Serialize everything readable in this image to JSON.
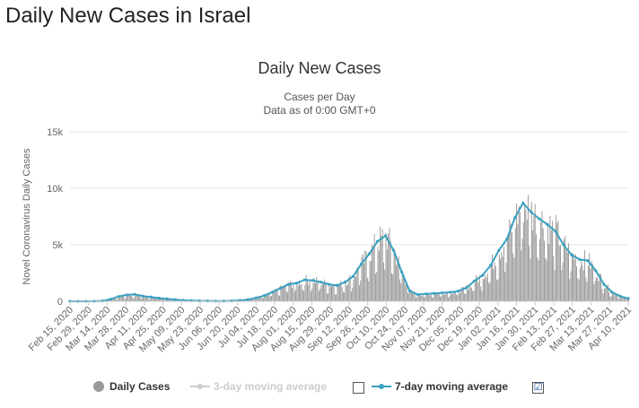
{
  "page_title": "Daily New Cases in Israel",
  "legend": {
    "daily_cases": "Daily Cases",
    "three_day": "3-day moving average",
    "seven_day": "7-day moving average",
    "seven_day_checked": "☑"
  },
  "colors": {
    "bars": "#999999",
    "seven_day_line": "#3aa0c0",
    "three_day_disabled": "#cccccc",
    "grid": "#e6e6e6"
  },
  "chart_data": {
    "type": "bar",
    "title": "Daily New Cases",
    "subtitle": [
      "Cases per Day",
      "Data as of 0:00 GMT+0"
    ],
    "ylabel": "Novel Coronavirus Daily Cases",
    "ylim": [
      0,
      15000
    ],
    "yticks": [
      0,
      5000,
      10000,
      15000
    ],
    "ytick_labels": [
      "0",
      "5k",
      "10k",
      "15k"
    ],
    "grid": true,
    "legend_position": "bottom",
    "x_tick_labels": [
      "Feb 15, 2020",
      "Feb 29, 2020",
      "Mar 14, 2020",
      "Mar 28, 2020",
      "Apr 11, 2020",
      "Apr 25, 2020",
      "May 09, 2020",
      "May 23, 2020",
      "Jun 06, 2020",
      "Jun 20, 2020",
      "Jul 04, 2020",
      "Jul 18, 2020",
      "Aug 01, 2020",
      "Aug 15, 2020",
      "Aug 29, 2020",
      "Sep 12, 2020",
      "Sep 26, 2020",
      "Oct 10, 2020",
      "Oct 24, 2020",
      "Nov 07, 2020",
      "Nov 21, 2020",
      "Dec 05, 2020",
      "Dec 19, 2020",
      "Jan 02, 2021",
      "Jan 16, 2021",
      "Jan 30, 2021",
      "Feb 13, 2021",
      "Feb 27, 2021",
      "Mar 13, 2021",
      "Mar 27, 2021",
      "Apr 10, 2021"
    ],
    "x_start": "Feb 15, 2020",
    "series": [
      {
        "name": "Daily Cases",
        "type": "bar",
        "values_weekly": [
          0,
          0,
          0,
          5,
          30,
          180,
          420,
          560,
          620,
          460,
          380,
          280,
          220,
          150,
          90,
          60,
          40,
          30,
          20,
          20,
          40,
          80,
          150,
          300,
          500,
          800,
          1150,
          1500,
          1600,
          1900,
          1850,
          1700,
          1500,
          1400,
          1700,
          2200,
          3300,
          4200,
          5300,
          5800,
          4500,
          2600,
          900,
          600,
          650,
          700,
          750,
          800,
          900,
          1200,
          1800,
          2300,
          3200,
          4500,
          5500,
          7400,
          8700,
          7900,
          7300,
          6800,
          6200,
          5000,
          4100,
          3700,
          3600,
          2700,
          1500,
          800,
          450,
          250
        ]
      },
      {
        "name": "7-day moving average",
        "type": "line",
        "values_weekly": [
          0,
          0,
          0,
          5,
          30,
          180,
          420,
          560,
          620,
          460,
          380,
          280,
          220,
          150,
          90,
          60,
          40,
          30,
          20,
          20,
          40,
          80,
          150,
          300,
          500,
          800,
          1150,
          1500,
          1600,
          1900,
          1850,
          1700,
          1500,
          1400,
          1700,
          2200,
          3300,
          4200,
          5300,
          5800,
          4500,
          2600,
          900,
          600,
          650,
          700,
          750,
          800,
          900,
          1200,
          1800,
          2300,
          3200,
          4500,
          5500,
          7400,
          8700,
          7900,
          7300,
          6800,
          6200,
          5000,
          4100,
          3700,
          3600,
          2700,
          1500,
          800,
          450,
          250
        ]
      }
    ]
  }
}
